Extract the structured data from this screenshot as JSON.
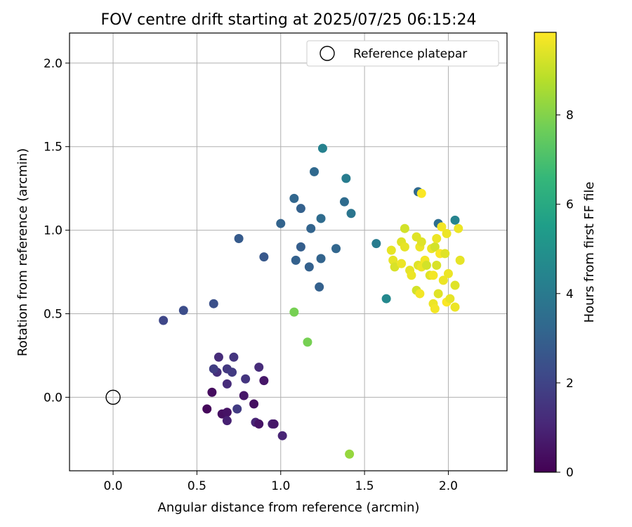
{
  "chart_data": {
    "type": "scatter",
    "title": "FOV centre drift starting at 2025/07/25 06:15:24",
    "xlabel": "Angular distance from reference (arcmin)",
    "ylabel": "Rotation from reference (arcmin)",
    "xlim": [
      -0.26,
      2.35
    ],
    "ylim": [
      -0.44,
      2.18
    ],
    "xticks": [
      0.0,
      0.5,
      1.0,
      1.5,
      2.0
    ],
    "xtick_labels": [
      "0.0",
      "0.5",
      "1.0",
      "1.5",
      "2.0"
    ],
    "yticks": [
      0.0,
      0.5,
      1.0,
      1.5,
      2.0
    ],
    "ytick_labels": [
      "0.0",
      "0.5",
      "1.0",
      "1.5",
      "2.0"
    ],
    "grid": true,
    "legend": {
      "position": "top-right",
      "entries": [
        "Reference platepar"
      ]
    },
    "reference_point": {
      "x": 0.0,
      "y": 0.0
    },
    "colorbar": {
      "label": "Hours from first FF file",
      "colormap": "viridis",
      "range": [
        0,
        9.85
      ],
      "ticks": [
        0,
        2,
        4,
        6,
        8
      ],
      "tick_labels": [
        "0",
        "2",
        "4",
        "6",
        "8"
      ]
    },
    "points": [
      {
        "x": 0.56,
        "y": -0.07,
        "c": 0.2
      },
      {
        "x": 0.59,
        "y": 0.03,
        "c": 0.3
      },
      {
        "x": 0.65,
        "y": -0.1,
        "c": 0.4
      },
      {
        "x": 0.68,
        "y": -0.09,
        "c": 0.5
      },
      {
        "x": 0.68,
        "y": -0.14,
        "c": 0.9
      },
      {
        "x": 0.74,
        "y": -0.07,
        "c": 1.7
      },
      {
        "x": 0.62,
        "y": 0.15,
        "c": 1.3
      },
      {
        "x": 0.63,
        "y": 0.24,
        "c": 1.2
      },
      {
        "x": 0.6,
        "y": 0.17,
        "c": 1.8
      },
      {
        "x": 0.68,
        "y": 0.17,
        "c": 1.6
      },
      {
        "x": 0.71,
        "y": 0.15,
        "c": 1.7
      },
      {
        "x": 0.72,
        "y": 0.24,
        "c": 1.5
      },
      {
        "x": 0.68,
        "y": 0.08,
        "c": 1.2
      },
      {
        "x": 0.78,
        "y": 0.01,
        "c": 0.6
      },
      {
        "x": 0.79,
        "y": 0.11,
        "c": 1.5
      },
      {
        "x": 0.84,
        "y": -0.04,
        "c": 0.4
      },
      {
        "x": 0.85,
        "y": -0.15,
        "c": 1.0
      },
      {
        "x": 0.87,
        "y": -0.16,
        "c": 0.5
      },
      {
        "x": 0.87,
        "y": 0.18,
        "c": 1.2
      },
      {
        "x": 0.9,
        "y": 0.1,
        "c": 0.6
      },
      {
        "x": 0.95,
        "y": -0.16,
        "c": 0.9
      },
      {
        "x": 0.96,
        "y": -0.16,
        "c": 0.6
      },
      {
        "x": 1.01,
        "y": -0.23,
        "c": 1.0
      },
      {
        "x": 0.3,
        "y": 0.46,
        "c": 2.1
      },
      {
        "x": 0.42,
        "y": 0.52,
        "c": 2.3
      },
      {
        "x": 0.6,
        "y": 0.56,
        "c": 2.4
      },
      {
        "x": 0.75,
        "y": 0.95,
        "c": 2.8
      },
      {
        "x": 0.9,
        "y": 0.84,
        "c": 2.7
      },
      {
        "x": 1.0,
        "y": 1.04,
        "c": 3.1
      },
      {
        "x": 1.08,
        "y": 1.19,
        "c": 3.2
      },
      {
        "x": 1.09,
        "y": 0.82,
        "c": 3.0
      },
      {
        "x": 1.12,
        "y": 1.13,
        "c": 3.0
      },
      {
        "x": 1.12,
        "y": 0.9,
        "c": 2.9
      },
      {
        "x": 1.17,
        "y": 0.78,
        "c": 3.0
      },
      {
        "x": 1.18,
        "y": 1.01,
        "c": 3.1
      },
      {
        "x": 1.2,
        "y": 1.35,
        "c": 3.3
      },
      {
        "x": 1.23,
        "y": 0.66,
        "c": 3.0
      },
      {
        "x": 1.24,
        "y": 0.83,
        "c": 3.1
      },
      {
        "x": 1.24,
        "y": 1.07,
        "c": 3.4
      },
      {
        "x": 1.25,
        "y": 1.49,
        "c": 4.3
      },
      {
        "x": 1.33,
        "y": 0.89,
        "c": 3.2
      },
      {
        "x": 1.38,
        "y": 1.17,
        "c": 3.4
      },
      {
        "x": 1.39,
        "y": 1.31,
        "c": 4.1
      },
      {
        "x": 1.42,
        "y": 1.1,
        "c": 3.8
      },
      {
        "x": 1.57,
        "y": 0.92,
        "c": 4.1
      },
      {
        "x": 1.63,
        "y": 0.59,
        "c": 4.6
      },
      {
        "x": 1.82,
        "y": 1.23,
        "c": 3.3
      },
      {
        "x": 1.94,
        "y": 1.04,
        "c": 3.5
      },
      {
        "x": 2.04,
        "y": 1.06,
        "c": 4.4
      },
      {
        "x": 1.08,
        "y": 0.51,
        "c": 7.8
      },
      {
        "x": 1.16,
        "y": 0.33,
        "c": 7.8
      },
      {
        "x": 1.41,
        "y": -0.34,
        "c": 8.3
      },
      {
        "x": 1.66,
        "y": 0.88,
        "c": 9.5
      },
      {
        "x": 1.67,
        "y": 0.82,
        "c": 9.5
      },
      {
        "x": 1.68,
        "y": 0.78,
        "c": 9.3
      },
      {
        "x": 1.72,
        "y": 0.93,
        "c": 9.4
      },
      {
        "x": 1.72,
        "y": 0.8,
        "c": 9.6
      },
      {
        "x": 1.74,
        "y": 0.9,
        "c": 9.5
      },
      {
        "x": 1.74,
        "y": 1.01,
        "c": 9.2
      },
      {
        "x": 1.77,
        "y": 0.76,
        "c": 9.5
      },
      {
        "x": 1.78,
        "y": 0.73,
        "c": 9.6
      },
      {
        "x": 1.81,
        "y": 0.96,
        "c": 9.4
      },
      {
        "x": 1.81,
        "y": 0.64,
        "c": 9.2
      },
      {
        "x": 1.82,
        "y": 0.79,
        "c": 9.4
      },
      {
        "x": 1.83,
        "y": 0.62,
        "c": 9.7
      },
      {
        "x": 1.83,
        "y": 0.9,
        "c": 9.6
      },
      {
        "x": 1.84,
        "y": 0.78,
        "c": 9.6
      },
      {
        "x": 1.84,
        "y": 0.93,
        "c": 9.4
      },
      {
        "x": 1.84,
        "y": 1.22,
        "c": 9.8
      },
      {
        "x": 1.86,
        "y": 0.82,
        "c": 9.7
      },
      {
        "x": 1.87,
        "y": 0.79,
        "c": 9.2
      },
      {
        "x": 1.89,
        "y": 0.73,
        "c": 9.4
      },
      {
        "x": 1.9,
        "y": 0.89,
        "c": 9.6
      },
      {
        "x": 1.91,
        "y": 0.73,
        "c": 9.7
      },
      {
        "x": 1.91,
        "y": 0.56,
        "c": 9.6
      },
      {
        "x": 1.92,
        "y": 0.53,
        "c": 9.7
      },
      {
        "x": 1.92,
        "y": 0.9,
        "c": 9.2
      },
      {
        "x": 1.93,
        "y": 0.79,
        "c": 9.3
      },
      {
        "x": 1.93,
        "y": 0.95,
        "c": 9.6
      },
      {
        "x": 1.94,
        "y": 0.62,
        "c": 9.4
      },
      {
        "x": 1.95,
        "y": 0.86,
        "c": 9.8
      },
      {
        "x": 1.96,
        "y": 1.02,
        "c": 9.7
      },
      {
        "x": 1.97,
        "y": 0.7,
        "c": 9.6
      },
      {
        "x": 1.98,
        "y": 0.86,
        "c": 9.4
      },
      {
        "x": 1.99,
        "y": 0.98,
        "c": 9.6
      },
      {
        "x": 1.99,
        "y": 0.57,
        "c": 9.8
      },
      {
        "x": 2.0,
        "y": 0.74,
        "c": 9.6
      },
      {
        "x": 2.01,
        "y": 0.59,
        "c": 9.5
      },
      {
        "x": 2.04,
        "y": 0.67,
        "c": 9.4
      },
      {
        "x": 2.04,
        "y": 0.54,
        "c": 9.6
      },
      {
        "x": 2.06,
        "y": 1.01,
        "c": 9.6
      },
      {
        "x": 2.07,
        "y": 0.82,
        "c": 9.5
      }
    ]
  }
}
